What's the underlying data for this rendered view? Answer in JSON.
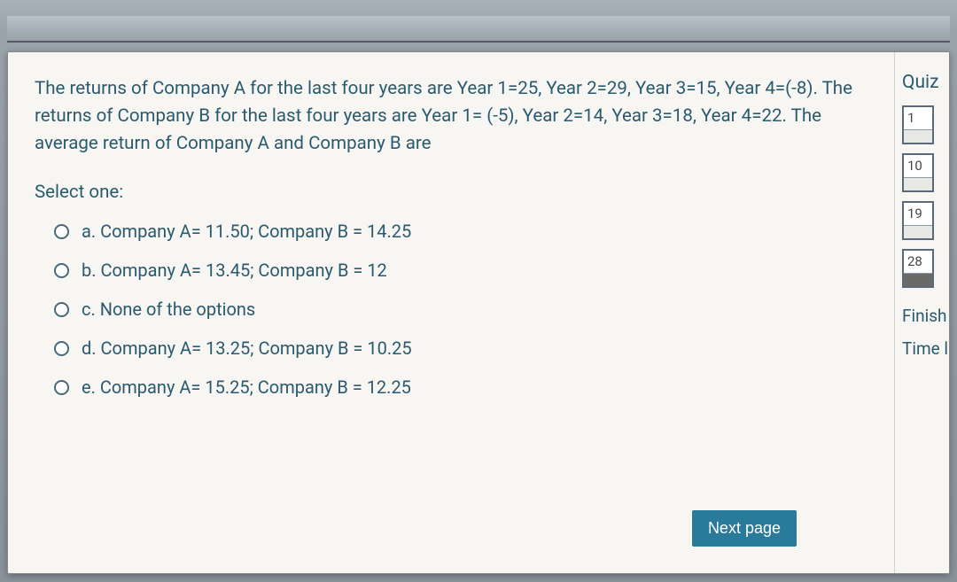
{
  "question": {
    "text": "The returns of Company A for the last four years are Year 1=25, Year 2=29, Year 3=15, Year 4=(-8). The returns of Company B for the last four years are Year 1= (-5), Year 2=14, Year 3=18, Year 4=22. The average return of Company A and Company B are",
    "select_one": "Select one:",
    "options": [
      "a. Company A= 11.50; Company B = 14.25",
      "b. Company A= 13.45; Company B = 12",
      "c. None of the options",
      "d. Company A= 13.25; Company B = 10.25",
      "e. Company A= 15.25; Company B = 12.25"
    ]
  },
  "next_button": "Next page",
  "sidebar": {
    "quiz_label": "Quiz",
    "nav_items": [
      "1",
      "10",
      "19",
      "28"
    ],
    "finish": "Finish",
    "time": "Time l"
  },
  "colors": {
    "text": "#2a5a6e",
    "button_bg": "#2a7a9a",
    "panel_bg": "#f7f6f2"
  }
}
